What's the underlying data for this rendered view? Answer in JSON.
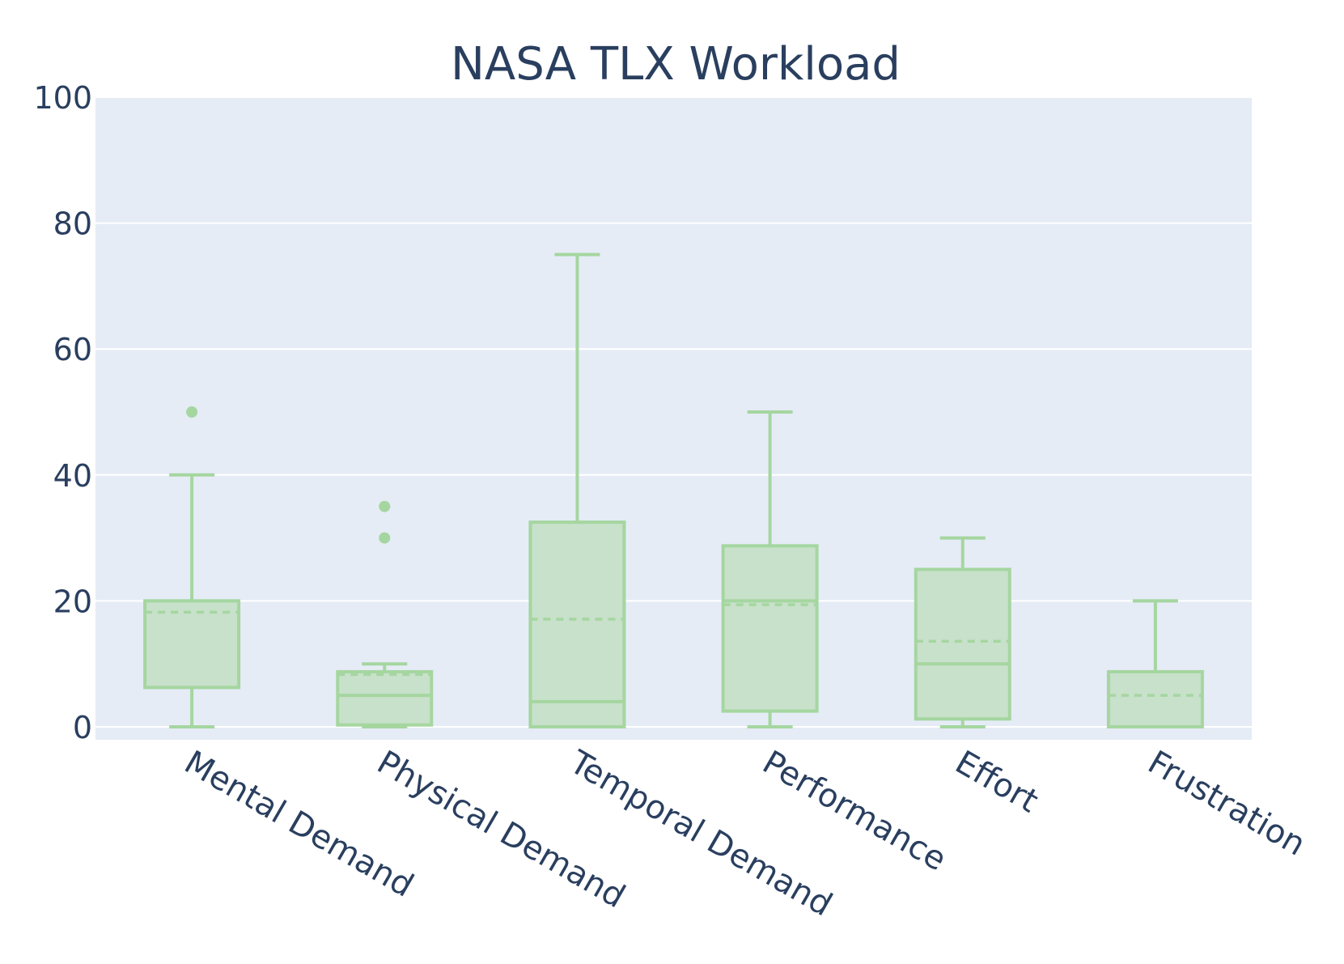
{
  "chart_data": {
    "type": "box",
    "title": "NASA TLX Workload",
    "xlabel": "",
    "ylabel": "",
    "ylim": [
      -2,
      100
    ],
    "yticks": [
      "0",
      "20",
      "40",
      "60",
      "80",
      "100"
    ],
    "grid": true,
    "legend": "none",
    "categories": [
      "Mental Demand",
      "Physical Demand",
      "Temporal Demand",
      "Performance",
      "Effort",
      "Frustration"
    ],
    "boxes": [
      {
        "category": "Mental Demand",
        "min": 0,
        "q1": 6.25,
        "median": 20,
        "q3": 20,
        "max": 40,
        "mean": 18.2,
        "outliers": [
          50
        ]
      },
      {
        "category": "Physical Demand",
        "min": 0,
        "q1": 0.3,
        "median": 5,
        "q3": 8.75,
        "max": 10,
        "mean": 8.3,
        "outliers": [
          30,
          35
        ]
      },
      {
        "category": "Temporal Demand",
        "min": 0,
        "q1": 0,
        "median": 4,
        "q3": 32.5,
        "max": 75,
        "mean": 17.1,
        "outliers": []
      },
      {
        "category": "Performance",
        "min": 0,
        "q1": 2.5,
        "median": 20,
        "q3": 28.75,
        "max": 50,
        "mean": 19.4,
        "outliers": []
      },
      {
        "category": "Effort",
        "min": 0,
        "q1": 1.25,
        "median": 10,
        "q3": 25,
        "max": 30,
        "mean": 13.6,
        "outliers": []
      },
      {
        "category": "Frustration",
        "min": 0,
        "q1": 0,
        "median": 0,
        "q3": 8.75,
        "max": 20,
        "mean": 5,
        "outliers": []
      }
    ],
    "colors": {
      "line": "#a5d6a0",
      "fill": "#c8e1ca",
      "plot_bg": "#e5ecf6",
      "grid": "#ffffff",
      "text": "#2a3f5f"
    }
  }
}
